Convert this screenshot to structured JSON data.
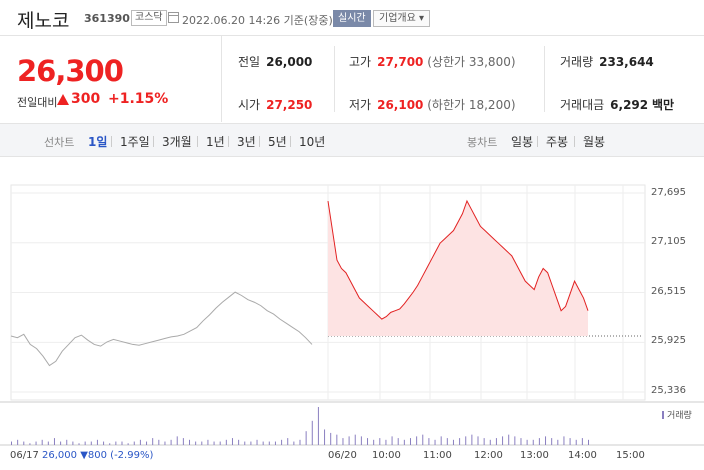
{
  "header": {
    "name": "제노코",
    "code": "361390",
    "market": "코스닥",
    "datetime": "2022.06.20 14:26 기준(장중)",
    "realtime": "실시간",
    "overview": "기업개요 ▾"
  },
  "price": {
    "current": "26,300",
    "change_label": "전일대비",
    "change_value": "300",
    "change_rate": "+1.15%",
    "direction": "up",
    "up_color": "#e22222"
  },
  "stats": {
    "prev_close": {
      "label": "전일",
      "value": "26,000"
    },
    "open": {
      "label": "시가",
      "value": "27,250"
    },
    "high": {
      "label": "고가",
      "value": "27,700",
      "sub": "(상한가 33,800)"
    },
    "low": {
      "label": "저가",
      "value": "26,100",
      "sub": "(하한가 18,200)"
    },
    "volume": {
      "label": "거래량",
      "value": "233,644"
    },
    "amount": {
      "label": "거래대금",
      "value": "6,292",
      "unit": "백만"
    }
  },
  "period_bar": {
    "chart_label": "선차트",
    "periods": [
      "1일",
      "1주일",
      "3개월",
      "1년",
      "3년",
      "5년",
      "10년"
    ],
    "active_period": "1일",
    "candle_label": "봉차트",
    "candles": [
      "일봉",
      "주봉",
      "월봉"
    ]
  },
  "footer": {
    "date": "06/17",
    "price": "26,000",
    "change": "▼800",
    "rate": "(-2.99%)",
    "down_color": "#2a56c6"
  },
  "chart_data": {
    "type": "line",
    "y_ticks": [
      "27,695",
      "27,105",
      "26,515",
      "25,925",
      "25,336"
    ],
    "ylim": [
      25336,
      27695
    ],
    "x_ticks": [
      "06/17",
      "06/20",
      "10:00",
      "11:00",
      "12:00",
      "13:00",
      "14:00",
      "15:00"
    ],
    "reference_line": 26000,
    "volume_label": "거래량",
    "series": [
      {
        "period": "06/17",
        "color": "#aaaaaa",
        "values": [
          26000,
          25980,
          26020,
          25900,
          25850,
          25760,
          25650,
          25700,
          25820,
          25900,
          25980,
          26010,
          25950,
          25900,
          25880,
          25930,
          25960,
          25940,
          25920,
          25900,
          25890,
          25910,
          25930,
          25950,
          25970,
          25990,
          26000,
          26020,
          26060,
          26100,
          26180,
          26250,
          26330,
          26400,
          26460,
          26520,
          26480,
          26430,
          26400,
          26360,
          26300,
          26260,
          26200,
          26150,
          26100,
          26050,
          25980,
          25900
        ]
      },
      {
        "period": "06/20",
        "color": "#e22222",
        "values": [
          27600,
          27250,
          26900,
          26800,
          26750,
          26650,
          26550,
          26450,
          26400,
          26350,
          26300,
          26250,
          26200,
          26230,
          26280,
          26300,
          26320,
          26380,
          26450,
          26520,
          26600,
          26700,
          26800,
          26900,
          27000,
          27100,
          27150,
          27200,
          27250,
          27350,
          27450,
          27600,
          27500,
          27400,
          27300,
          27250,
          27200,
          27150,
          27100,
          27050,
          27000,
          26950,
          26850,
          26750,
          26650,
          26600,
          26550,
          26700,
          26800,
          26750,
          26600,
          26450,
          26300,
          26350,
          26500,
          26650,
          26550,
          26450,
          26300
        ]
      }
    ],
    "volume": [
      2,
      3,
      2,
      1,
      2,
      3,
      2,
      4,
      2,
      3,
      2,
      1,
      2,
      2,
      3,
      2,
      1,
      2,
      2,
      1,
      2,
      3,
      2,
      4,
      3,
      2,
      3,
      5,
      4,
      3,
      2,
      2,
      3,
      2,
      2,
      3,
      4,
      3,
      2,
      2,
      3,
      2,
      2,
      2,
      3,
      4,
      2,
      3,
      8,
      14,
      22,
      9,
      7,
      6,
      4,
      5,
      6,
      5,
      4,
      3,
      4,
      3,
      5,
      4,
      3,
      4,
      5,
      6,
      4,
      3,
      5,
      4,
      3,
      4,
      5,
      6,
      5,
      4,
      3,
      4,
      5,
      6,
      5,
      4,
      3,
      3,
      4,
      5,
      4,
      3,
      5,
      4,
      3,
      4,
      3
    ]
  }
}
